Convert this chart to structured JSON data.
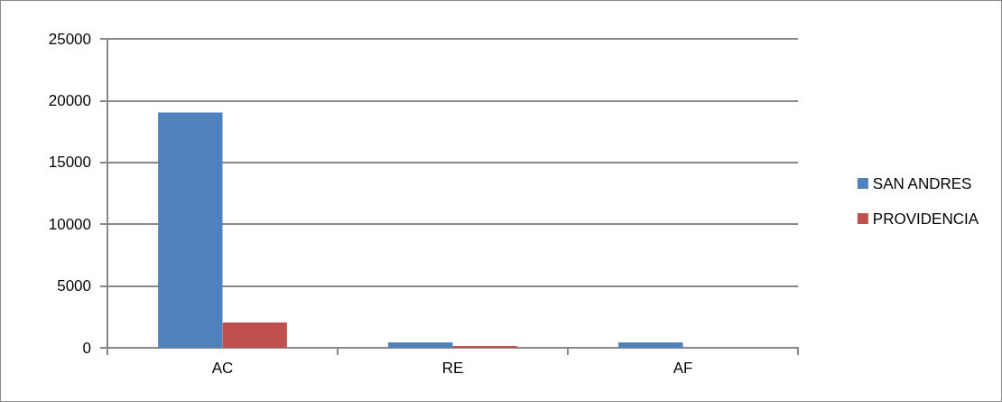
{
  "chart_data": {
    "type": "bar",
    "categories": [
      "AC",
      "RE",
      "AF"
    ],
    "series": [
      {
        "name": "SAN ANDRES",
        "color": "#4f81bd",
        "values": [
          19050,
          430,
          430
        ]
      },
      {
        "name": "PROVIDENCIA",
        "color": "#c0504d",
        "values": [
          2050,
          150,
          0
        ]
      }
    ],
    "ylim": [
      0,
      25000
    ],
    "yticks": [
      0,
      5000,
      10000,
      15000,
      20000,
      25000
    ],
    "grid": "y",
    "legend": "right"
  }
}
